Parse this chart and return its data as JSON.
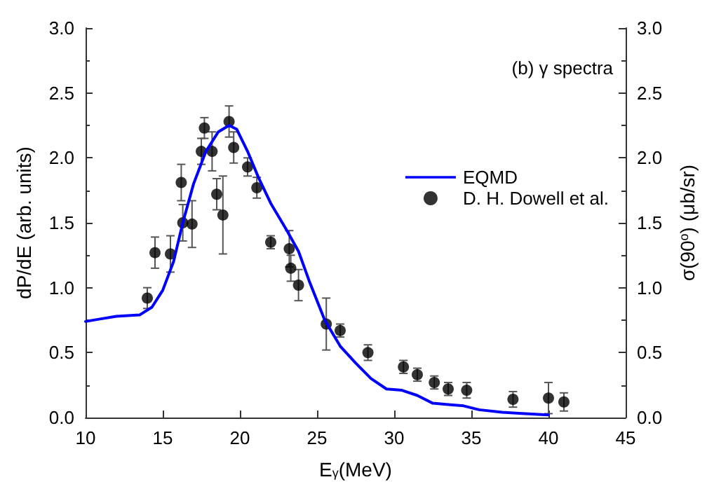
{
  "chart_data": {
    "type": "line",
    "xlabel": "E$_{γ}$(MeV)",
    "ylabel": "dP/dE (arb. units)",
    "y2label": "σ(90$^{o}$) (μb/sr)",
    "annotations": [
      "(b) γ spectra"
    ],
    "xlim": [
      10,
      45
    ],
    "xticks": [
      10,
      15,
      20,
      25,
      30,
      35,
      40,
      45
    ],
    "ylim": [
      0,
      3
    ],
    "yticks": [
      {
        "value": 0,
        "label": "0.0"
      },
      {
        "value": 0.5,
        "label": "0.5"
      },
      {
        "value": 1,
        "label": "1.0"
      },
      {
        "value": 1.5,
        "label": "1.5"
      },
      {
        "value": 2,
        "label": "2.0"
      },
      {
        "value": 2.5,
        "label": "2.5"
      },
      {
        "value": 3,
        "label": "3.0"
      }
    ],
    "y2lim": [
      0,
      3
    ],
    "y2ticks": [
      {
        "value": 0,
        "label": "0.0"
      },
      {
        "value": 0.5,
        "label": "0.5"
      },
      {
        "value": 1,
        "label": "1.0"
      },
      {
        "value": 1.5,
        "label": "1.5"
      },
      {
        "value": 2,
        "label": "2.0"
      },
      {
        "value": 2.5,
        "label": "2.5"
      },
      {
        "value": 3,
        "label": "3.0"
      }
    ],
    "grid": false,
    "legend": "right",
    "series": [
      {
        "name": "EQMD",
        "color": "#0000ff",
        "marker": "none",
        "line_style": "solid",
        "x": [
          10,
          11,
          12,
          13.5,
          14.3,
          15,
          15.7,
          16.3,
          17,
          17.8,
          18.6,
          19.3,
          19.8,
          20.5,
          21.2,
          22,
          23,
          23.8,
          24.5,
          25.5,
          26.5,
          27.5,
          28.5,
          29.5,
          30.5,
          31.5,
          32.5,
          33.5,
          34.5,
          35.5,
          37,
          38.5,
          40
        ],
        "values": [
          0.74,
          0.76,
          0.78,
          0.79,
          0.85,
          0.98,
          1.2,
          1.5,
          1.8,
          2.05,
          2.2,
          2.25,
          2.22,
          2.05,
          1.85,
          1.65,
          1.45,
          1.28,
          1.05,
          0.75,
          0.55,
          0.42,
          0.3,
          0.22,
          0.21,
          0.17,
          0.11,
          0.1,
          0.09,
          0.06,
          0.04,
          0.03,
          0.02
        ]
      },
      {
        "name": "D. H. Dowell et al.",
        "type": "scatter",
        "color": "#000000",
        "marker": "circle",
        "x": [
          14,
          14.5,
          15.5,
          16.2,
          16.3,
          16.9,
          17.5,
          17.7,
          18.2,
          18.5,
          18.9,
          19.3,
          19.6,
          20.5,
          21.1,
          22,
          23.2,
          23.3,
          23.8,
          25.6,
          26.5,
          28.3,
          30.6,
          31.5,
          32.6,
          33.5,
          34.7,
          37.7,
          40,
          41
        ],
        "values": [
          0.92,
          1.27,
          1.26,
          1.81,
          1.5,
          1.49,
          2.05,
          2.23,
          2.05,
          1.72,
          1.56,
          2.28,
          2.08,
          1.93,
          1.77,
          1.35,
          1.3,
          1.15,
          1.02,
          0.72,
          0.67,
          0.5,
          0.39,
          0.33,
          0.27,
          0.22,
          0.21,
          0.14,
          0.15,
          0.12
        ],
        "errors": [
          0.08,
          0.12,
          0.14,
          0.14,
          0.14,
          0.18,
          0.1,
          0.08,
          0.15,
          0.12,
          0.3,
          0.12,
          0.12,
          0.07,
          0.08,
          0.05,
          0.14,
          0.1,
          0.12,
          0.2,
          0.05,
          0.06,
          0.05,
          0.05,
          0.05,
          0.05,
          0.06,
          0.06,
          0.12,
          0.07
        ]
      }
    ]
  }
}
